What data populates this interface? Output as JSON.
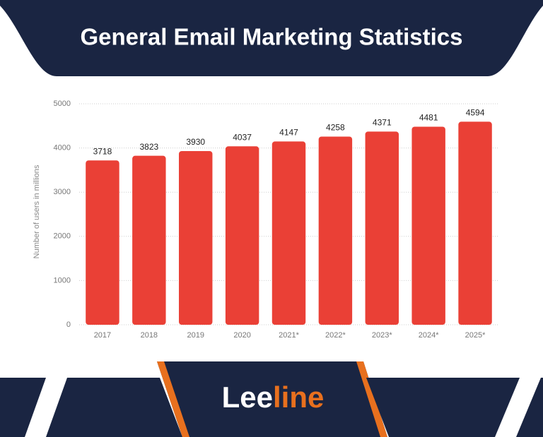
{
  "chart_data": {
    "type": "bar",
    "title": "General Email Marketing Statistics",
    "y_label": "Number of users in millions",
    "categories": [
      "2017",
      "2018",
      "2019",
      "2020",
      "2021*",
      "2022*",
      "2023*",
      "2024*",
      "2025*"
    ],
    "values": [
      3718,
      3823,
      3930,
      4037,
      4147,
      4258,
      4371,
      4481,
      4594
    ],
    "color": "#ea4036",
    "ylim": [
      0,
      5000
    ],
    "yticks": [
      0,
      1000,
      2000,
      3000,
      4000,
      5000
    ],
    "grid": true
  },
  "logo": {
    "first": "Lee",
    "second": "line"
  }
}
